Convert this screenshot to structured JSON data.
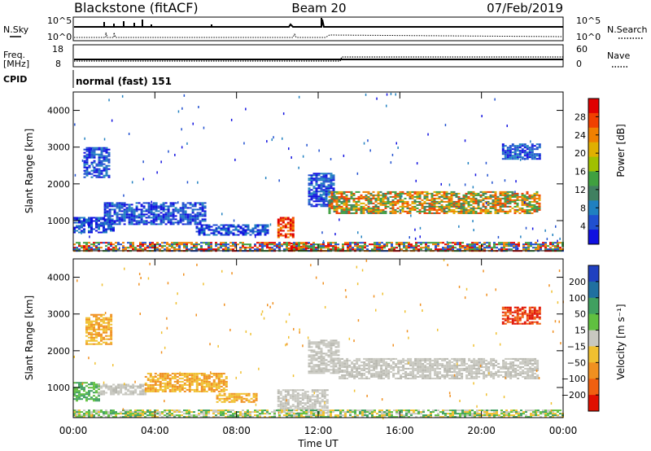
{
  "header": {
    "station": "Blackstone (fitACF)",
    "beam": "Beam 20",
    "date": "07/Feb/2019"
  },
  "status_panels": {
    "nsky_label": "N.Sky",
    "nsearch_label": "N.Search",
    "freq_label": "Freq.",
    "freq_unit": "[MHz]",
    "nave_label": "Nave",
    "cpid_label": "CPID",
    "cpid_text": "normal (fast) 151",
    "noise_ticks_left": [
      "10^5",
      "10^0"
    ],
    "noise_ticks_right": [
      "10^5",
      "10^0"
    ],
    "freq_ticks": [
      "18",
      "8"
    ],
    "nave_ticks": [
      "60",
      "0"
    ]
  },
  "chart_data": [
    {
      "type": "heatmap",
      "name_on_chart": "",
      "ylabel": "Slant Range [km]",
      "xlabel": "",
      "colorbar_label": "Power [dB]",
      "colorbar_ticks": [
        "28",
        "24",
        "20",
        "16",
        "12",
        "8",
        "4"
      ],
      "colorbar_colors": [
        "#e00000",
        "#f04000",
        "#f08000",
        "#e0b000",
        "#a0c000",
        "#40a040",
        "#408060",
        "#2080c0",
        "#2050d0",
        "#1010e0"
      ],
      "y_ticks": [
        "4000",
        "3000",
        "2000",
        "1000"
      ],
      "ylim": [
        180,
        4500
      ],
      "xlim": [
        "00:00",
        "24:00"
      ],
      "regions": [
        {
          "t0": 0.0,
          "t1": 2.0,
          "r0": 700,
          "r1": 1100,
          "level": "low"
        },
        {
          "t0": 0.5,
          "t1": 1.8,
          "r0": 2200,
          "r1": 3000,
          "level": "low"
        },
        {
          "t0": 1.5,
          "t1": 6.5,
          "r0": 900,
          "r1": 1500,
          "level": "low"
        },
        {
          "t0": 6.0,
          "t1": 9.5,
          "r0": 600,
          "r1": 900,
          "level": "low"
        },
        {
          "t0": 10.0,
          "t1": 10.8,
          "r0": 550,
          "r1": 1100,
          "level": "high"
        },
        {
          "t0": 10.5,
          "t1": 11.5,
          "r0": 180,
          "r1": 400,
          "level": "high"
        },
        {
          "t0": 11.5,
          "t1": 12.8,
          "r0": 1400,
          "r1": 2300,
          "level": "low"
        },
        {
          "t0": 12.5,
          "t1": 22.8,
          "r0": 1200,
          "r1": 1800,
          "level": "mid"
        },
        {
          "t0": 21.0,
          "t1": 22.8,
          "r0": 2700,
          "r1": 3100,
          "level": "low"
        },
        {
          "t0": 0.0,
          "t1": 24.0,
          "r0": 180,
          "r1": 420,
          "level": "ground"
        }
      ]
    },
    {
      "type": "heatmap",
      "name_on_chart": "",
      "ylabel": "Slant Range [km]",
      "xlabel": "Time UT",
      "colorbar_label": "Velocity [m s⁻¹]",
      "colorbar_ticks": [
        "200",
        "100",
        "50",
        "15",
        "−15",
        "−50",
        "−100",
        "−200"
      ],
      "colorbar_colors": [
        "#2040c0",
        "#2070a0",
        "#40a060",
        "#60c040",
        "#c8c8c0",
        "#f0c030",
        "#f09020",
        "#f06010",
        "#e01000"
      ],
      "y_ticks": [
        "4000",
        "3000",
        "2000",
        "1000"
      ],
      "x_ticks": [
        "00:00",
        "04:00",
        "08:00",
        "12:00",
        "16:00",
        "20:00",
        "00:00"
      ],
      "ylim": [
        180,
        4500
      ],
      "xlim": [
        "00:00",
        "24:00"
      ],
      "regions": [
        {
          "t0": 0.0,
          "t1": 1.2,
          "r0": 650,
          "r1": 1150,
          "level": "green"
        },
        {
          "t0": 1.2,
          "t1": 3.5,
          "r0": 800,
          "r1": 1100,
          "level": "gray"
        },
        {
          "t0": 3.5,
          "t1": 7.5,
          "r0": 900,
          "r1": 1400,
          "level": "orange"
        },
        {
          "t0": 0.6,
          "t1": 1.8,
          "r0": 2200,
          "r1": 3000,
          "level": "orange"
        },
        {
          "t0": 7.0,
          "t1": 9.0,
          "r0": 600,
          "r1": 850,
          "level": "orange"
        },
        {
          "t0": 10.0,
          "t1": 12.5,
          "r0": 300,
          "r1": 950,
          "level": "gray"
        },
        {
          "t0": 11.5,
          "t1": 13.0,
          "r0": 1400,
          "r1": 2300,
          "level": "gray"
        },
        {
          "t0": 13.0,
          "t1": 22.8,
          "r0": 1250,
          "r1": 1800,
          "level": "gray"
        },
        {
          "t0": 21.0,
          "t1": 22.8,
          "r0": 2750,
          "r1": 3200,
          "level": "red"
        },
        {
          "t0": 0.0,
          "t1": 24.0,
          "r0": 180,
          "r1": 400,
          "level": "ground"
        }
      ]
    }
  ]
}
